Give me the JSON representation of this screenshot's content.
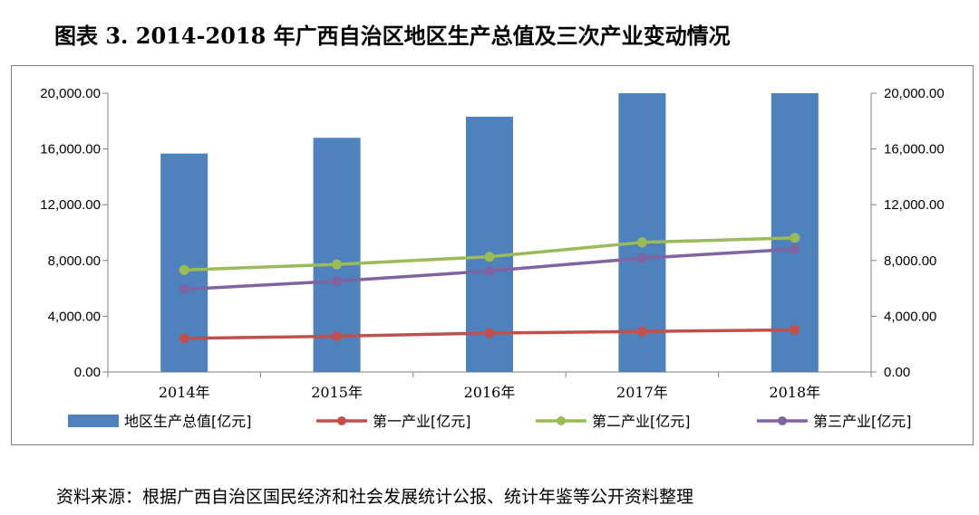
{
  "figure_title": "图表 3.   2014-2018 年广西自治区地区生产总值及三次产业变动情况",
  "source_note": "资料来源：根据广西自治区国民经济和社会发展统计公报、统计年鉴等公开资料整理",
  "chart_data": {
    "type": "bar",
    "categories": [
      "2014年",
      "2015年",
      "2016年",
      "2017年",
      "2018年"
    ],
    "y_ticks": [
      "0.00",
      "4,000.00",
      "8,000.00",
      "12,000.00",
      "16,000.00",
      "20,000.00"
    ],
    "y2_ticks": [
      "0.00",
      "4,000.00",
      "8,000.00",
      "12,000.00",
      "16,000.00",
      "20,000.00"
    ],
    "ylim": [
      0,
      20000
    ],
    "y2lim": [
      0,
      20000
    ],
    "grid": false,
    "legend_position": "bottom",
    "series": [
      {
        "name": "地区生产总值[亿元]",
        "kind": "bar",
        "axis": "left",
        "color": "#4F81BD",
        "values": [
          15673,
          16803,
          18317,
          20000,
          20000
        ]
      },
      {
        "name": "第一产业[亿元]",
        "kind": "line",
        "axis": "right",
        "color": "#C0504D",
        "values": [
          2413,
          2566,
          2796,
          2907,
          3019
        ]
      },
      {
        "name": "第二产业[亿元]",
        "kind": "line",
        "axis": "right",
        "color": "#9BBB59",
        "values": [
          7324,
          7718,
          8273,
          9298,
          9624
        ]
      },
      {
        "name": "第三产业[亿元]",
        "kind": "line",
        "axis": "right",
        "color": "#8064A2",
        "values": [
          5935,
          6520,
          7248,
          8168,
          8818
        ]
      }
    ]
  }
}
